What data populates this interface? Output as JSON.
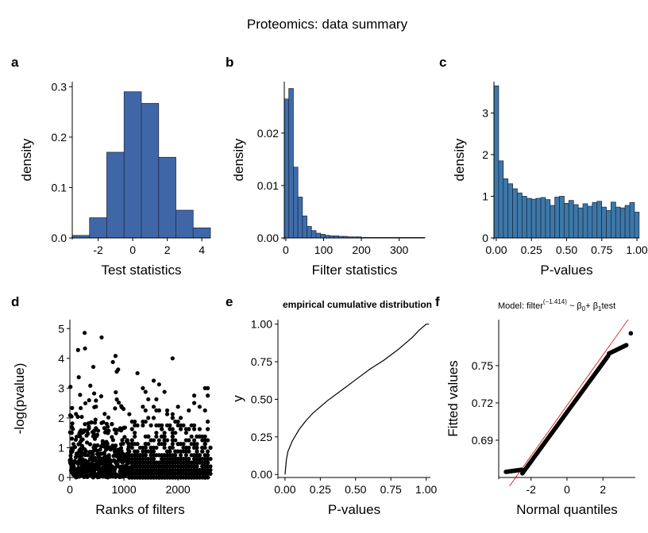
{
  "title": "Proteomics: data summary",
  "colors": {
    "hist_a": "#3F67A8",
    "hist_b": "#3F6DAB",
    "hist_c": "#3C78A8",
    "edge": "#1f2f4a",
    "qq_line": "#E03030",
    "points": "#000000"
  },
  "chart_data": [
    {
      "panel": "a",
      "type": "bar",
      "xlabel": "Test statistics",
      "ylabel": "density",
      "bin_edges": [
        -3.5,
        -2.5,
        -1.5,
        -0.5,
        0.5,
        1.5,
        2.5,
        3.5,
        4.5
      ],
      "values": [
        0.005,
        0.04,
        0.17,
        0.29,
        0.267,
        0.16,
        0.055,
        0.02
      ],
      "xlim": [
        -3.5,
        4.5
      ],
      "ylim": [
        0,
        0.31
      ],
      "xticks": [
        -2,
        0,
        2,
        4
      ],
      "xtick_labels": [
        "-2",
        "0",
        "2",
        "4"
      ],
      "yticks": [
        0,
        0.1,
        0.2,
        0.3
      ],
      "ytick_labels": [
        "0.0",
        "0.1",
        "0.2",
        "0.3"
      ]
    },
    {
      "panel": "b",
      "type": "bar",
      "xlabel": "Filter statistics",
      "ylabel": "density",
      "bin_width": 12,
      "x0": -4,
      "values": [
        0.0265,
        0.0285,
        0.0135,
        0.0078,
        0.0042,
        0.0022,
        0.0014,
        0.0009,
        0.0007,
        0.0005,
        0.0004,
        0.0004,
        0.0003,
        0.0003,
        0.0002,
        0.0002,
        0.0002,
        0.0001,
        0.0001,
        0.0001,
        0.0001,
        0.0001,
        0.0001,
        0.0001,
        0.0001,
        0.0001,
        0.0001,
        0.0001,
        0.0001,
        0.0001,
        0.0001
      ],
      "xlim": [
        -4,
        368
      ],
      "ylim": [
        0,
        0.0298
      ],
      "xticks": [
        0,
        100,
        200,
        300
      ],
      "xtick_labels": [
        "0",
        "100",
        "200",
        "300"
      ],
      "yticks": [
        0,
        0.01,
        0.02
      ],
      "ytick_labels": [
        "0.00",
        "0.01",
        "0.02"
      ]
    },
    {
      "panel": "c",
      "type": "bar",
      "xlabel": "P-values",
      "ylabel": "density",
      "bin_width": 0.0333,
      "x0": -0.0167,
      "values": [
        3.65,
        1.85,
        1.42,
        1.3,
        1.18,
        1.08,
        1.0,
        0.95,
        0.93,
        0.95,
        0.97,
        0.92,
        0.78,
        0.98,
        1.0,
        0.83,
        0.9,
        0.8,
        0.72,
        0.82,
        0.76,
        0.85,
        0.88,
        0.74,
        0.66,
        0.86,
        0.74,
        0.72,
        0.78,
        0.85,
        0.62
      ],
      "xlim": [
        -0.0167,
        1.0166
      ],
      "ylim": [
        0,
        3.75
      ],
      "xticks": [
        0,
        0.25,
        0.5,
        0.75,
        1.0
      ],
      "xtick_labels": [
        "0.00",
        "0.25",
        "0.50",
        "0.75",
        "1.00"
      ],
      "yticks": [
        0,
        1,
        2,
        3
      ],
      "ytick_labels": [
        "0",
        "1",
        "2",
        "3"
      ]
    },
    {
      "panel": "d",
      "type": "scatter",
      "xlabel": "Ranks of filters",
      "ylabel": "-log(pvalue)",
      "xlim": [
        0,
        2600
      ],
      "ylim": [
        0,
        5.3
      ],
      "n_columns": 52,
      "xticks": [
        0,
        1000,
        2000
      ],
      "xtick_labels": [
        "0",
        "1000",
        "2000"
      ],
      "yticks": [
        0,
        1,
        2,
        3,
        4,
        5
      ],
      "ytick_labels": [
        "0",
        "1",
        "2",
        "3",
        "4",
        "5"
      ]
    },
    {
      "panel": "e",
      "type": "line",
      "title": "empirical cumulative distribution",
      "xlabel": "P-values",
      "ylabel": "y",
      "x": [
        0.0,
        0.01,
        0.02,
        0.05,
        0.1,
        0.15,
        0.2,
        0.25,
        0.3,
        0.4,
        0.5,
        0.6,
        0.7,
        0.8,
        0.9,
        0.95,
        1.0,
        1.02
      ],
      "y": [
        0.0,
        0.1,
        0.15,
        0.22,
        0.3,
        0.36,
        0.41,
        0.45,
        0.49,
        0.56,
        0.63,
        0.7,
        0.76,
        0.83,
        0.91,
        0.96,
        1.0,
        1.0
      ],
      "xlim": [
        -0.05,
        1.03
      ],
      "ylim": [
        -0.02,
        1.03
      ],
      "xticks": [
        0,
        0.25,
        0.5,
        0.75,
        1.0
      ],
      "xtick_labels": [
        "0.00",
        "0.25",
        "0.50",
        "0.75",
        "1.00"
      ],
      "yticks": [
        0,
        0.25,
        0.5,
        0.75,
        1.0
      ],
      "ytick_labels": [
        "0.00",
        "0.25",
        "0.50",
        "0.75",
        "1.00"
      ]
    },
    {
      "panel": "f",
      "type": "scatter",
      "title_main": "Model: filter",
      "title_exp": "(−1.414)",
      "title_rest": " ~ β",
      "title_sub0": "0",
      "title_mid": "+ β",
      "title_sub1": "1",
      "title_end": "test",
      "xlabel": "Normal quantiles",
      "ylabel": "Fitted values",
      "xlim": [
        -3.8,
        3.8
      ],
      "ylim": [
        0.66,
        0.787
      ],
      "xticks": [
        -2,
        0,
        2
      ],
      "xtick_labels": [
        "-2",
        "0",
        "2"
      ],
      "yticks": [
        0.69,
        0.72,
        0.75
      ],
      "ytick_labels": [
        "0.69",
        "0.72",
        "0.75"
      ],
      "fit_line": [
        [
          -3.2,
          0.653
        ],
        [
          3.4,
          0.787
        ]
      ]
    }
  ]
}
